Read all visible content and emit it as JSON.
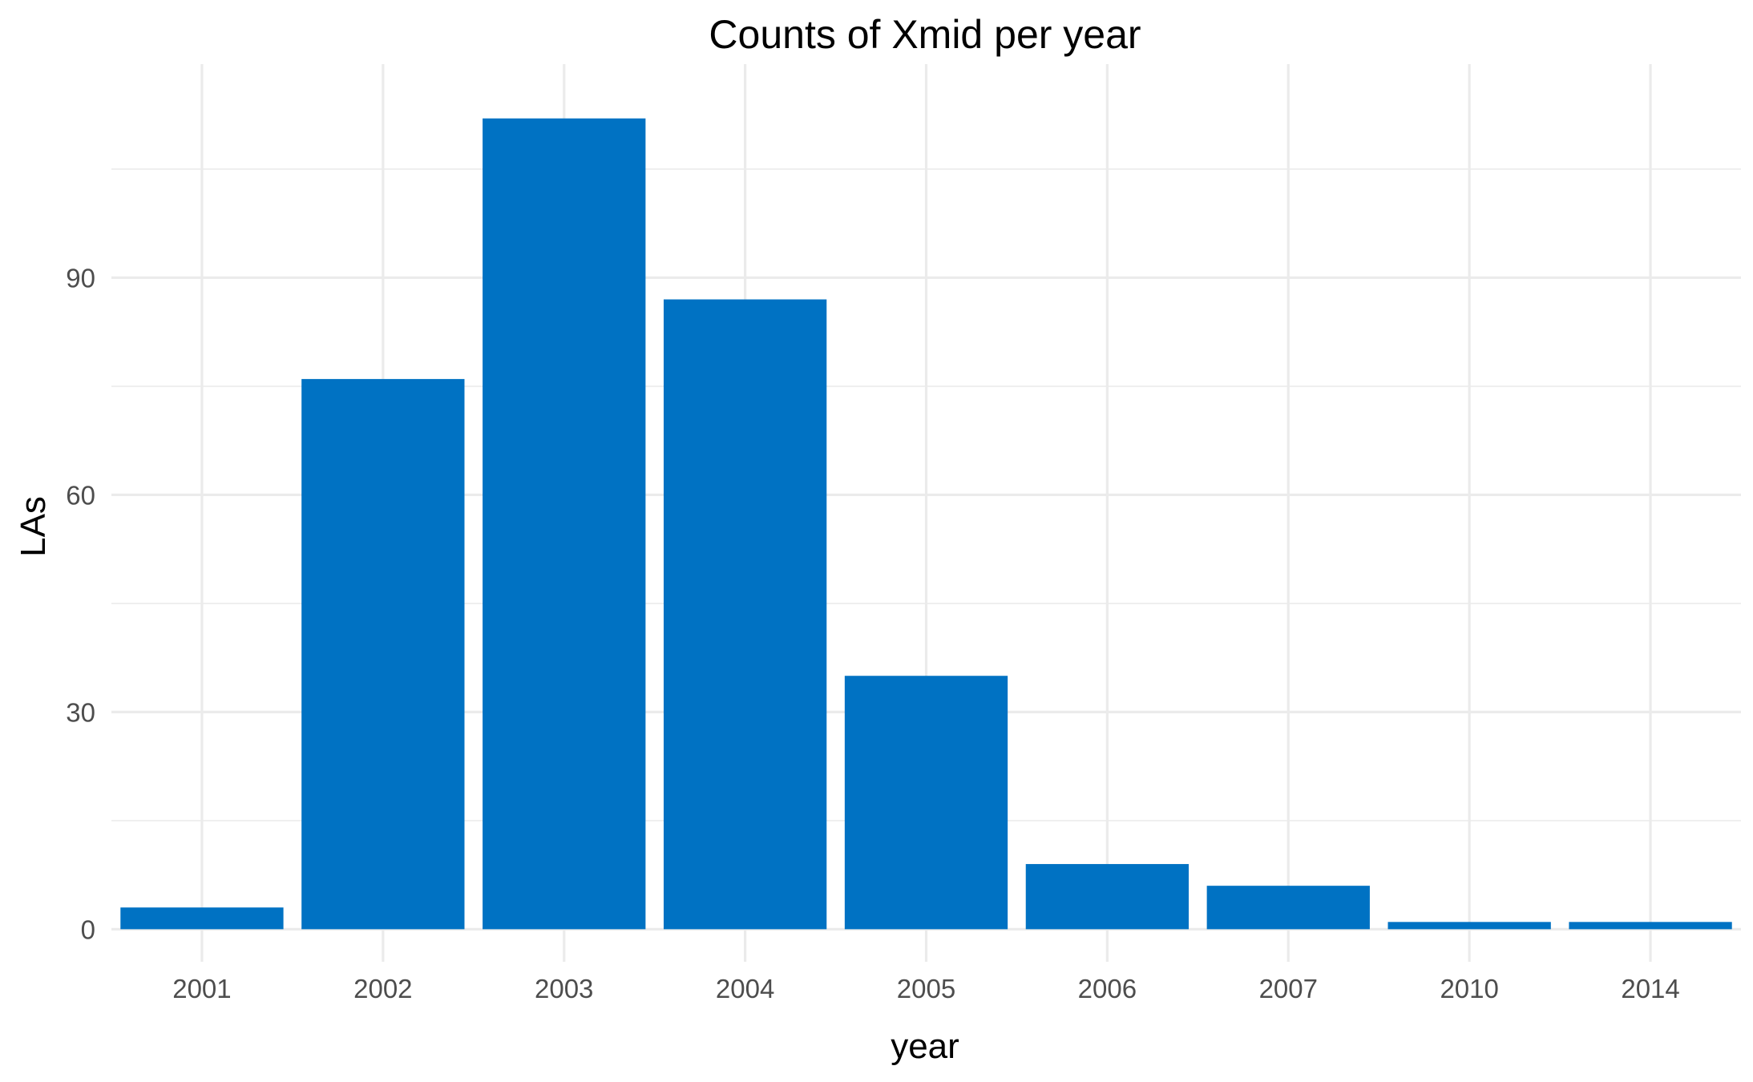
{
  "chart_data": {
    "type": "bar",
    "title": "Counts of Xmid per year",
    "xlabel": "year",
    "ylabel": "LAs",
    "categories": [
      "2001",
      "2002",
      "2003",
      "2004",
      "2005",
      "2006",
      "2007",
      "2010",
      "2014"
    ],
    "values": [
      3,
      76,
      112,
      87,
      35,
      9,
      6,
      1,
      1
    ],
    "ylim": [
      -4.5,
      119.5
    ],
    "yticks": [
      0,
      30,
      60,
      90
    ],
    "grid": true,
    "legend": "none",
    "bar_color": "#0072c3"
  }
}
